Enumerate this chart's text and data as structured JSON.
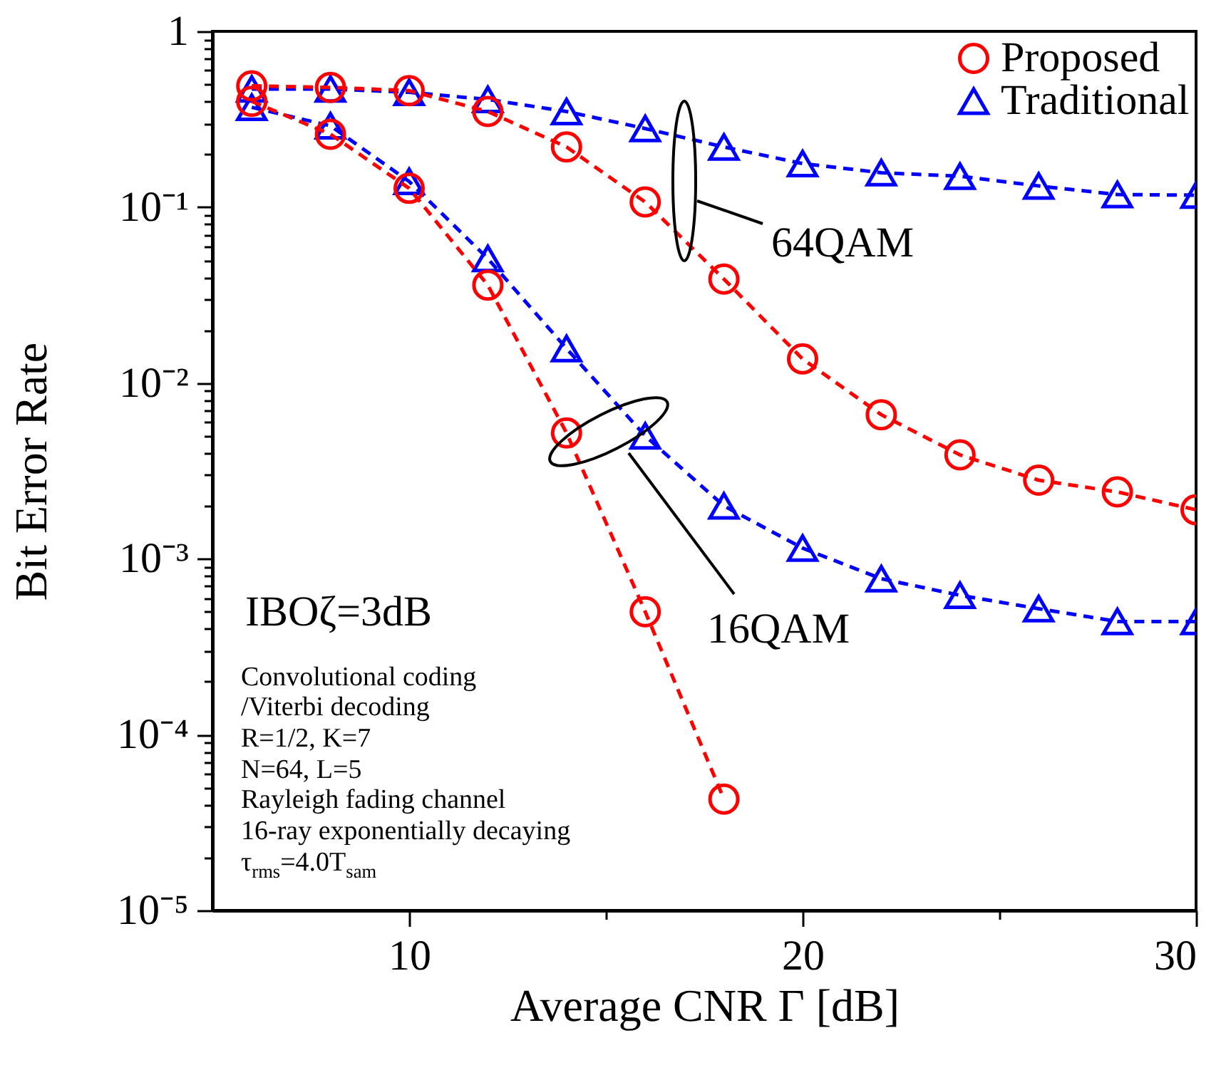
{
  "chart_data": {
    "type": "line",
    "xlabel": "Average CNR Γ [dB]",
    "ylabel": "Bit Error Rate",
    "x": [
      6,
      8,
      10,
      12,
      14,
      16,
      18,
      20,
      22,
      24,
      26,
      28,
      30
    ],
    "series": [
      {
        "name": "Proposed",
        "color": "#ff0000",
        "marker": "circle",
        "values": [
          0.49,
          0.48,
          0.46,
          0.35,
          0.22,
          0.107,
          0.039,
          0.0137,
          0.0066,
          0.0039,
          0.0028,
          0.0024,
          0.0019
        ]
      },
      {
        "name": "Traditional",
        "color": "#0000ff",
        "marker": "triangle",
        "values": [
          0.47,
          0.47,
          0.45,
          0.41,
          0.35,
          0.28,
          0.22,
          0.177,
          0.157,
          0.15,
          0.132,
          0.118,
          0.117
        ]
      },
      {
        "color": "#ff0000",
        "marker": "circle",
        "x": [
          6,
          8,
          10,
          12,
          14,
          16,
          18
        ],
        "values": [
          0.4,
          0.26,
          0.128,
          0.036,
          0.0052,
          0.0005,
          4.3e-05
        ]
      },
      {
        "color": "#0000ff",
        "marker": "triangle",
        "values": [
          0.37,
          0.29,
          0.14,
          0.051,
          0.0157,
          0.005,
          0.002,
          0.00115,
          0.00077,
          0.00062,
          0.00052,
          0.00044,
          0.00044
        ]
      }
    ],
    "log": "y",
    "line_style": "dashed",
    "legend": "top right",
    "xlim": [
      5,
      30
    ],
    "xticks": [
      10,
      {
        "value": 15,
        "label": null
      },
      20,
      {
        "value": 25,
        "label": null
      },
      30
    ],
    "ylim": [
      1e-05,
      1
    ],
    "yticks": [
      {
        "value": 1e-05,
        "label": "10⁻⁵"
      },
      {
        "value": 2e-05,
        "label": null
      },
      {
        "value": 3e-05,
        "label": null
      },
      {
        "value": 4e-05,
        "label": null
      },
      {
        "value": 5e-05,
        "label": null
      },
      {
        "value": 6e-05,
        "label": null
      },
      {
        "value": 7e-05,
        "label": null
      },
      {
        "value": 8e-05,
        "label": null
      },
      {
        "value": 9e-05,
        "label": null
      },
      {
        "value": 0.0001,
        "label": "10⁻⁴"
      },
      {
        "value": 0.0002,
        "label": null
      },
      {
        "value": 0.0003,
        "label": null
      },
      {
        "value": 0.0004,
        "label": null
      },
      {
        "value": 0.0005,
        "label": null
      },
      {
        "value": 0.0006,
        "label": null
      },
      {
        "value": 0.0007,
        "label": null
      },
      {
        "value": 0.0008,
        "label": null
      },
      {
        "value": 0.0009,
        "label": null
      },
      {
        "value": 0.001,
        "label": "10⁻³"
      },
      {
        "value": 0.002,
        "label": null
      },
      {
        "value": 0.003,
        "label": null
      },
      {
        "value": 0.004,
        "label": null
      },
      {
        "value": 0.005,
        "label": null
      },
      {
        "value": 0.006,
        "label": null
      },
      {
        "value": 0.007,
        "label": null
      },
      {
        "value": 0.008,
        "label": null
      },
      {
        "value": 0.009,
        "label": null
      },
      {
        "value": 0.01,
        "label": "10⁻²"
      },
      {
        "value": 0.02,
        "label": null
      },
      {
        "value": 0.03,
        "label": null
      },
      {
        "value": 0.04,
        "label": null
      },
      {
        "value": 0.05,
        "label": null
      },
      {
        "value": 0.06,
        "label": null
      },
      {
        "value": 0.07,
        "label": null
      },
      {
        "value": 0.08,
        "label": null
      },
      {
        "value": 0.09,
        "label": null
      },
      {
        "value": 0.1,
        "label": "10⁻¹"
      },
      {
        "value": 0.2,
        "label": null
      },
      {
        "value": 0.3,
        "label": null
      },
      {
        "value": 0.4,
        "label": null
      },
      {
        "value": 0.5,
        "label": null
      },
      {
        "value": 0.6,
        "label": null
      },
      {
        "value": 0.7,
        "label": null
      },
      {
        "value": 0.8,
        "label": null
      },
      {
        "value": 0.9,
        "label": null
      },
      1
    ],
    "annotations": [
      "64QAM",
      "16QAM",
      "IBOζ=3dB",
      "Convolutional coding",
      "/Viterbi decoding",
      "R=1/2, K=7",
      "N=64, L=5",
      "Rayleigh fading channel",
      "16-ray exponentially decaying",
      "τ$_{rms}$=4.0T$_{sam}$"
    ]
  }
}
